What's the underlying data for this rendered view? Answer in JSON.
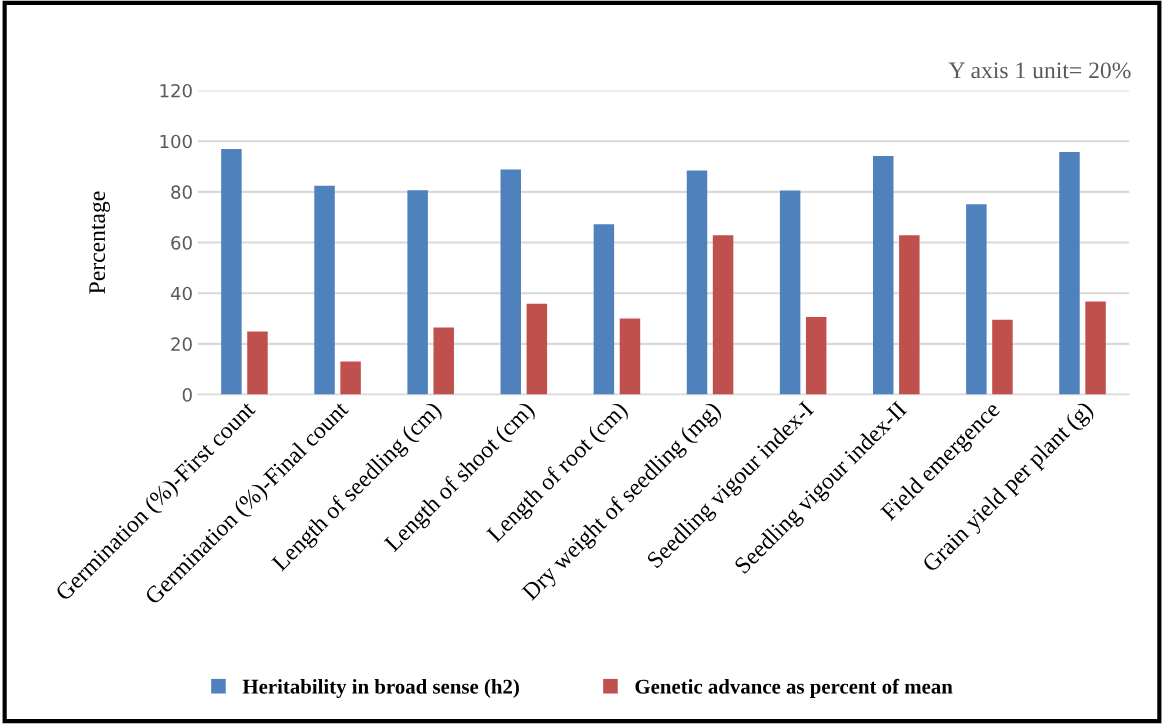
{
  "chart_data": {
    "type": "bar",
    "ylabel": "Percentage",
    "categories": [
      "Germination (%)-First count",
      "Germination (%)-Final count",
      "Length of seedling (cm)",
      "Length of shoot (cm)",
      "Length of root (cm)",
      "Dry weight of seedling (mg)",
      "Seedling vigour index-I",
      "Seedling vigour index-II",
      "Field emergence",
      "Grain yield per plant (g)"
    ],
    "series": [
      {
        "name": "Heritability in broad sense (h2)",
        "color": "#4f81bd",
        "values": [
          96.9,
          82.4,
          80.6,
          88.8,
          67.2,
          88.4,
          80.5,
          94.2,
          75.1,
          95.7
        ]
      },
      {
        "name": "Genetic advance as percent of mean",
        "color": "#c0504d",
        "values": [
          24.9,
          13.1,
          26.5,
          35.8,
          30.0,
          62.9,
          30.6,
          62.9,
          29.5,
          36.7
        ]
      }
    ],
    "ylim": [
      0,
      120
    ],
    "yticks": [
      0,
      20,
      40,
      60,
      80,
      100,
      120
    ],
    "grid": "y",
    "legend": "bottom",
    "annotations": [
      "Y axis 1 unit= 20%"
    ]
  }
}
